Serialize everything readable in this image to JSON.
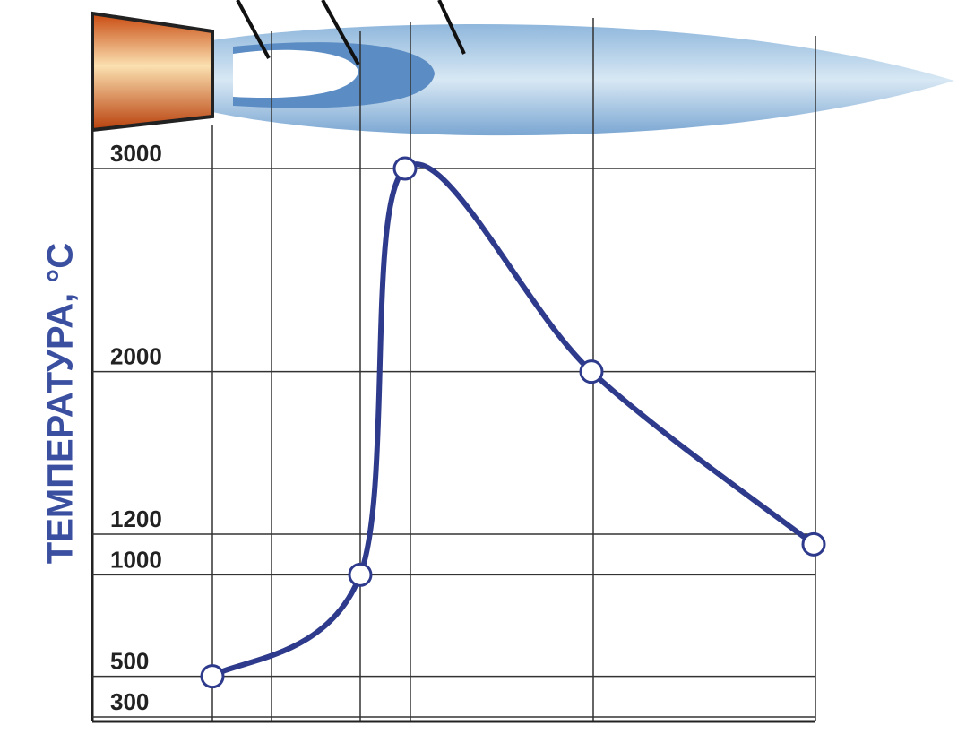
{
  "chart_data": {
    "type": "line",
    "y_label": "ТЕМПЕРАТУРА, °С",
    "categories": [
      null,
      null,
      null,
      null,
      null
    ],
    "series": [
      {
        "color": "#2e3a8c",
        "values": [
          500,
          1000,
          3000,
          2000,
          1150
        ]
      }
    ],
    "ylim": [
      300,
      3000
    ],
    "yticks": [
      300,
      500,
      1000,
      1200,
      2000,
      3000
    ],
    "grid": true
  }
}
